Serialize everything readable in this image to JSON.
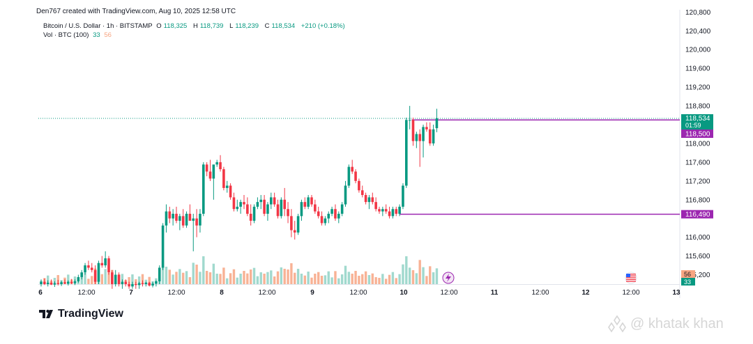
{
  "header": {
    "credit": "Den767 created with TradingView.com, Aug 10, 2025 12:58 UTC"
  },
  "legend": {
    "symbol": "Bitcoin / U.S. Dollar · 1h · BITSTAMP",
    "o_label": "O",
    "o_value": "118,325",
    "h_label": "H",
    "h_value": "118,739",
    "l_label": "L",
    "l_value": "118,239",
    "c_label": "C",
    "c_value": "118,534",
    "change": "+210 (+0.18%)",
    "vol_label": "Vol · BTC (100)",
    "vol_up": "33",
    "vol_down": "56"
  },
  "brand": {
    "name": "TradingView"
  },
  "watermark": {
    "text": "@ khatak khan"
  },
  "colors": {
    "up": "#089981",
    "down": "#f23645",
    "vol_up": "#91d2c6",
    "vol_down": "#f7a582",
    "level": "#9c27b0"
  },
  "chart_data": {
    "type": "candlestick",
    "y_range": [
      115000,
      120850
    ],
    "y_ticks": [
      "120,800",
      "120,400",
      "120,000",
      "119,600",
      "119,200",
      "118,800",
      "118,000",
      "117,600",
      "117,200",
      "116,800",
      "116,000",
      "115,600",
      "115,200"
    ],
    "x_ticks": [
      "6",
      "12:00",
      "7",
      "12:00",
      "8",
      "12:00",
      "9",
      "12:00",
      "10",
      "12:00",
      "11",
      "12:00",
      "12",
      "12:00",
      "13"
    ],
    "price_labels": {
      "last": "118,534",
      "countdown": "01:59",
      "level_high": "118,500",
      "level_low": "116,490",
      "vol_down": "56",
      "vol_up": "33"
    },
    "levels": [
      118500,
      116490
    ],
    "candles": [
      [
        115000,
        115100,
        114950,
        115050
      ],
      [
        115050,
        115120,
        114980,
        115000
      ],
      [
        115000,
        115080,
        114950,
        115030
      ],
      [
        115030,
        115100,
        114980,
        114990
      ],
      [
        114990,
        115060,
        114940,
        115020
      ],
      [
        115020,
        115090,
        114970,
        115000
      ],
      [
        115000,
        115070,
        114960,
        115040
      ],
      [
        115040,
        115100,
        115000,
        115010
      ],
      [
        115010,
        115080,
        114970,
        115050
      ],
      [
        115050,
        115110,
        115000,
        115020
      ],
      [
        115020,
        115100,
        114980,
        115060
      ],
      [
        115060,
        115200,
        115030,
        115150
      ],
      [
        115150,
        115300,
        115100,
        115250
      ],
      [
        115250,
        115450,
        115200,
        115400
      ],
      [
        115400,
        115500,
        115300,
        115350
      ],
      [
        115350,
        115450,
        115250,
        115300
      ],
      [
        115300,
        115400,
        115000,
        115050
      ],
      [
        115050,
        115500,
        115000,
        115450
      ],
      [
        115450,
        115600,
        115350,
        115400
      ],
      [
        115400,
        115700,
        115350,
        115550
      ],
      [
        115550,
        115600,
        115200,
        115250
      ],
      [
        115250,
        115300,
        114900,
        115000
      ],
      [
        115000,
        115300,
        114950,
        115200
      ],
      [
        115200,
        115250,
        114950,
        115000
      ],
      [
        115000,
        115100,
        114900,
        115050
      ],
      [
        115050,
        115100,
        114950,
        115000
      ],
      [
        115000,
        115050,
        114900,
        114950
      ],
      [
        114950,
        115050,
        114900,
        115000
      ],
      [
        115000,
        115050,
        114900,
        114980
      ],
      [
        114980,
        115050,
        114900,
        115020
      ],
      [
        115020,
        115080,
        114950,
        115000
      ],
      [
        115000,
        115050,
        114950,
        115030
      ],
      [
        115030,
        115050,
        114950,
        114970
      ],
      [
        114970,
        115050,
        114930,
        115010
      ],
      [
        115010,
        115080,
        114950,
        115060
      ],
      [
        115060,
        115400,
        115000,
        115350
      ],
      [
        115350,
        116300,
        115300,
        116250
      ],
      [
        116250,
        116700,
        116100,
        116550
      ],
      [
        116550,
        116650,
        116300,
        116400
      ],
      [
        116400,
        116600,
        116250,
        116500
      ],
      [
        116500,
        116650,
        116300,
        116350
      ],
      [
        116350,
        116500,
        116150,
        116450
      ],
      [
        116450,
        116600,
        116200,
        116250
      ],
      [
        116250,
        116550,
        116200,
        116500
      ],
      [
        116500,
        116700,
        116400,
        116350
      ],
      [
        116350,
        116500,
        115700,
        116400
      ],
      [
        116400,
        116600,
        116000,
        116250
      ],
      [
        116250,
        116600,
        116100,
        116500
      ],
      [
        116500,
        117600,
        116450,
        117550
      ],
      [
        117550,
        117600,
        117300,
        117400
      ],
      [
        117400,
        117650,
        117200,
        117250
      ],
      [
        117250,
        117500,
        116800,
        117550
      ],
      [
        117550,
        117650,
        117500,
        117600
      ],
      [
        117600,
        117750,
        117400,
        117450
      ],
      [
        117450,
        117500,
        117000,
        117050
      ],
      [
        117050,
        117200,
        116950,
        117100
      ],
      [
        117100,
        117150,
        116800,
        116850
      ],
      [
        116850,
        116950,
        116550,
        116600
      ],
      [
        116600,
        116800,
        116550,
        116650
      ],
      [
        116650,
        116800,
        116500,
        116750
      ],
      [
        116750,
        116900,
        116600,
        116700
      ],
      [
        116700,
        116850,
        116450,
        116500
      ],
      [
        116500,
        116700,
        116250,
        116350
      ],
      [
        116350,
        116700,
        116300,
        116650
      ],
      [
        116650,
        116850,
        116600,
        116750
      ],
      [
        116750,
        116900,
        116600,
        116800
      ],
      [
        116800,
        116900,
        116450,
        116500
      ],
      [
        116500,
        116750,
        116350,
        116700
      ],
      [
        116700,
        116950,
        116600,
        116850
      ],
      [
        116850,
        116950,
        116650,
        116700
      ],
      [
        116700,
        116800,
        116400,
        116450
      ],
      [
        116450,
        116850,
        116400,
        116800
      ],
      [
        116800,
        117050,
        116450,
        116600
      ],
      [
        116600,
        116750,
        116300,
        116450
      ],
      [
        116450,
        116600,
        116000,
        116150
      ],
      [
        116150,
        116350,
        115950,
        116100
      ],
      [
        116100,
        116500,
        116050,
        116450
      ],
      [
        116450,
        116800,
        116350,
        116750
      ],
      [
        116750,
        116850,
        116600,
        116650
      ],
      [
        116650,
        116900,
        116600,
        116850
      ],
      [
        116850,
        116900,
        116650,
        116700
      ],
      [
        116700,
        116800,
        116500,
        116550
      ],
      [
        116550,
        116650,
        116400,
        116450
      ],
      [
        116450,
        116550,
        116250,
        116300
      ],
      [
        116300,
        116450,
        116250,
        116400
      ],
      [
        116400,
        116550,
        116300,
        116500
      ],
      [
        116500,
        116650,
        116450,
        116600
      ],
      [
        116600,
        116700,
        116350,
        116400
      ],
      [
        116400,
        116550,
        116300,
        116500
      ],
      [
        116500,
        116750,
        116450,
        116700
      ],
      [
        116700,
        117200,
        116650,
        117100
      ],
      [
        117100,
        117550,
        117050,
        117500
      ],
      [
        117500,
        117650,
        117350,
        117400
      ],
      [
        117400,
        117450,
        117150,
        117200
      ],
      [
        117200,
        117250,
        116950,
        117000
      ],
      [
        117000,
        117100,
        116850,
        116900
      ],
      [
        116900,
        116950,
        116700,
        116750
      ],
      [
        116750,
        116900,
        116600,
        116850
      ],
      [
        116850,
        116950,
        116700,
        116750
      ],
      [
        116750,
        116850,
        116550,
        116600
      ],
      [
        116600,
        116650,
        116500,
        116550
      ],
      [
        116550,
        116650,
        116450,
        116600
      ],
      [
        116600,
        116700,
        116500,
        116550
      ],
      [
        116550,
        116650,
        116400,
        116450
      ],
      [
        116450,
        116650,
        116400,
        116600
      ],
      [
        116600,
        116650,
        116450,
        116500
      ],
      [
        116500,
        116700,
        116450,
        116650
      ],
      [
        116650,
        117150,
        116600,
        117100
      ],
      [
        117100,
        118550,
        117050,
        118500
      ],
      [
        118500,
        118800,
        118300,
        118500
      ],
      [
        118500,
        118550,
        117950,
        118050
      ],
      [
        118050,
        118250,
        117900,
        118200
      ],
      [
        118200,
        118300,
        117500,
        118050
      ],
      [
        118050,
        118400,
        117700,
        118350
      ],
      [
        118350,
        118450,
        118250,
        118300
      ],
      [
        118300,
        118450,
        117950,
        118000
      ],
      [
        118000,
        118400,
        117950,
        118300
      ],
      [
        118325,
        118739,
        118239,
        118534
      ]
    ]
  }
}
